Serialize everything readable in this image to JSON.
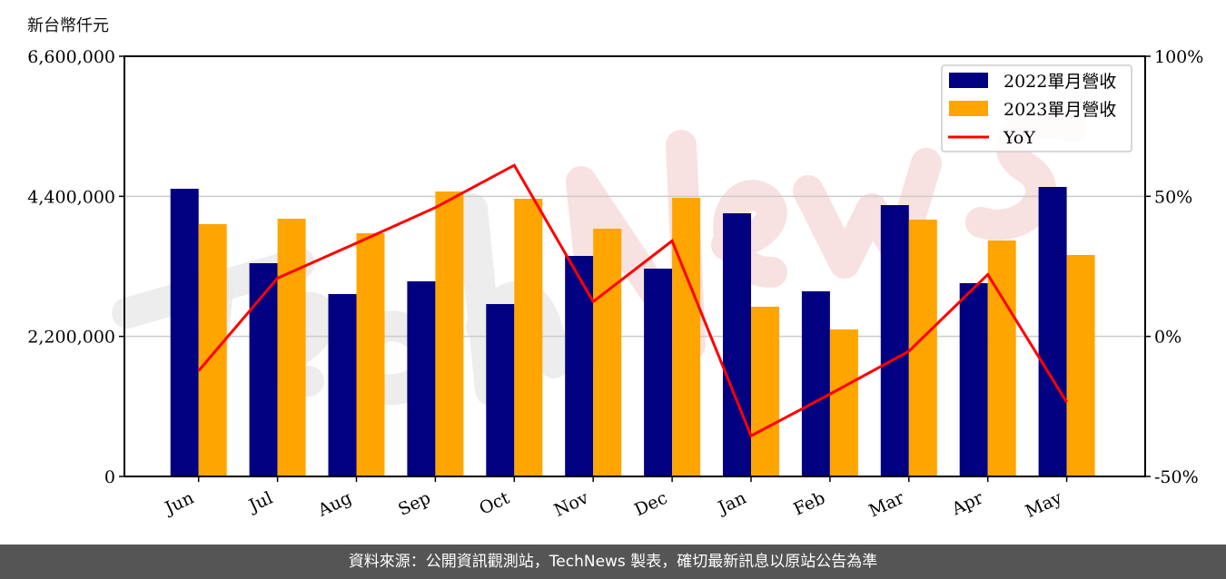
{
  "chart_data": {
    "type": "bar+line",
    "unit_label": "新台幣仟元",
    "categories": [
      "Jun",
      "Jul",
      "Aug",
      "Sep",
      "Oct",
      "Nov",
      "Dec",
      "Jan",
      "Feb",
      "Mar",
      "Apr",
      "May"
    ],
    "series": [
      {
        "name": "2022單月營收",
        "type": "bar",
        "axis": "left",
        "color": "#000080",
        "values": [
          4519000,
          3350000,
          2865000,
          3065000,
          2708000,
          3464000,
          3264000,
          4134000,
          2908000,
          4262000,
          3036000,
          4547000
        ]
      },
      {
        "name": "2023單月營收",
        "type": "bar",
        "axis": "left",
        "color": "#FFA500",
        "values": [
          3963000,
          4048000,
          3820000,
          4476000,
          4362000,
          3892000,
          4376000,
          2666000,
          2309000,
          4034000,
          3706000,
          3478000
        ]
      },
      {
        "name": "YoY",
        "type": "line",
        "axis": "right",
        "color": "#FF0000",
        "values": [
          -12.3,
          20.8,
          33.3,
          46.0,
          61.1,
          12.4,
          34.1,
          -35.5,
          -20.6,
          -5.3,
          22.1,
          -23.5
        ]
      }
    ],
    "left_axis": {
      "ylim": [
        0,
        6600000
      ],
      "ticks": [
        "0",
        "2,200,000",
        "4,400,000",
        "6,600,000"
      ],
      "tick_values": [
        0,
        2200000,
        4400000,
        6600000
      ]
    },
    "right_axis": {
      "ylim": [
        -50,
        100
      ],
      "ticks": [
        "-50%",
        "0%",
        "50%",
        "100%"
      ],
      "tick_values": [
        -50,
        0,
        50,
        100
      ]
    },
    "grid": "horizontal",
    "legend": "top-right"
  },
  "watermark": "TechNews",
  "footer": {
    "text": "資料來源：公開資訊觀測站，TechNews 製表，確切最新訊息以原站公告為準"
  }
}
